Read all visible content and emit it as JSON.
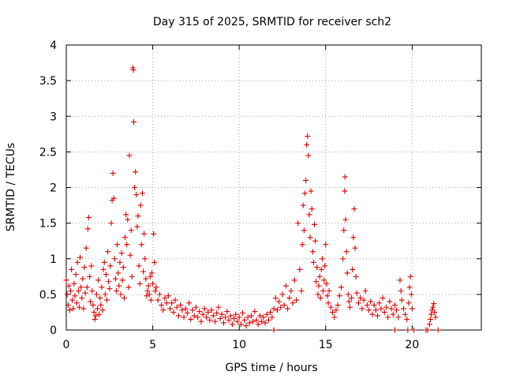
{
  "chart_data": {
    "type": "scatter",
    "title": "Day 315 of 2025, SRMTID for receiver sch2",
    "xlabel": "GPS time / hours",
    "ylabel": "SRMTID / TECUs",
    "xlim": [
      0,
      24
    ],
    "ylim": [
      0,
      4
    ],
    "grid": true,
    "marker": "+",
    "color": "#e00000",
    "x_tick_labels": [
      "0",
      "5",
      "10",
      "15",
      "20"
    ],
    "x_tick_values": [
      0,
      5,
      10,
      15,
      20
    ],
    "y_tick_labels": [
      "0",
      "0.5",
      "1",
      "1.5",
      "2",
      "2.5",
      "3",
      "3.5",
      "4"
    ],
    "y_tick_values": [
      0,
      0.5,
      1,
      1.5,
      2,
      2.5,
      3,
      3.5,
      4
    ],
    "series": [
      {
        "name": "SRMTID",
        "points": [
          [
            0.0,
            0.7
          ],
          [
            0.05,
            0.5
          ],
          [
            0.1,
            0.35
          ],
          [
            0.15,
            0.62
          ],
          [
            0.2,
            0.28
          ],
          [
            0.25,
            0.55
          ],
          [
            0.3,
            0.85
          ],
          [
            0.35,
            0.42
          ],
          [
            0.4,
            0.3
          ],
          [
            0.45,
            0.65
          ],
          [
            0.5,
            0.48
          ],
          [
            0.55,
            0.78
          ],
          [
            0.6,
            0.38
          ],
          [
            0.65,
            0.95
          ],
          [
            0.7,
            0.55
          ],
          [
            0.75,
            0.32
          ],
          [
            0.8,
            1.02
          ],
          [
            0.85,
            0.6
          ],
          [
            0.9,
            0.45
          ],
          [
            0.95,
            0.72
          ],
          [
            1.0,
            0.3
          ],
          [
            1.05,
            0.88
          ],
          [
            1.1,
            0.52
          ],
          [
            1.15,
            1.15
          ],
          [
            1.2,
            0.6
          ],
          [
            1.25,
            1.42
          ],
          [
            1.3,
            1.58
          ],
          [
            1.35,
            0.75
          ],
          [
            1.4,
            0.4
          ],
          [
            1.45,
            0.9
          ],
          [
            1.5,
            0.55
          ],
          [
            1.55,
            0.35
          ],
          [
            1.6,
            0.25
          ],
          [
            1.65,
            0.15
          ],
          [
            1.7,
            0.2
          ],
          [
            1.75,
            0.5
          ],
          [
            1.8,
            0.3
          ],
          [
            1.85,
            0.7
          ],
          [
            1.9,
            0.22
          ],
          [
            1.95,
            0.45
          ],
          [
            2.0,
            0.35
          ],
          [
            2.05,
            0.6
          ],
          [
            2.1,
            0.28
          ],
          [
            2.15,
            0.85
          ],
          [
            2.2,
            0.95
          ],
          [
            2.25,
            0.5
          ],
          [
            2.3,
            0.78
          ],
          [
            2.35,
            0.42
          ],
          [
            2.4,
            1.1
          ],
          [
            2.45,
            0.68
          ],
          [
            2.5,
            0.58
          ],
          [
            2.55,
            0.9
          ],
          [
            2.6,
            1.5
          ],
          [
            2.65,
            1.82
          ],
          [
            2.7,
            2.2
          ],
          [
            2.75,
            1.85
          ],
          [
            2.8,
            1.0
          ],
          [
            2.85,
            0.72
          ],
          [
            2.9,
            0.55
          ],
          [
            2.95,
            1.2
          ],
          [
            3.0,
            0.8
          ],
          [
            3.05,
            0.62
          ],
          [
            3.1,
            0.95
          ],
          [
            3.15,
            0.5
          ],
          [
            3.2,
            1.08
          ],
          [
            3.25,
            0.7
          ],
          [
            3.3,
            0.88
          ],
          [
            3.35,
            0.45
          ],
          [
            3.4,
            1.3
          ],
          [
            3.45,
            1.62
          ],
          [
            3.5,
            1.2
          ],
          [
            3.55,
            1.55
          ],
          [
            3.6,
            0.6
          ],
          [
            3.65,
            2.45
          ],
          [
            3.7,
            1.05
          ],
          [
            3.75,
            1.4
          ],
          [
            3.8,
            0.75
          ],
          [
            3.85,
            3.68
          ],
          [
            3.88,
            3.65
          ],
          [
            3.9,
            2.92
          ],
          [
            3.95,
            2.0
          ],
          [
            4.0,
            2.22
          ],
          [
            4.05,
            1.9
          ],
          [
            4.1,
            1.45
          ],
          [
            4.15,
            1.6
          ],
          [
            4.2,
            0.9
          ],
          [
            4.25,
            0.65
          ],
          [
            4.3,
            1.75
          ],
          [
            4.35,
            1.2
          ],
          [
            4.4,
            1.92
          ],
          [
            4.45,
            0.82
          ],
          [
            4.5,
            1.35
          ],
          [
            4.55,
            1.0
          ],
          [
            4.6,
            0.72
          ],
          [
            4.65,
            0.48
          ],
          [
            4.7,
            0.55
          ],
          [
            4.75,
            0.62
          ],
          [
            4.8,
            0.5
          ],
          [
            4.85,
            0.75
          ],
          [
            4.9,
            0.42
          ],
          [
            4.95,
            0.8
          ],
          [
            5.0,
            0.65
          ],
          [
            5.05,
            1.35
          ],
          [
            5.1,
            0.95
          ],
          [
            5.15,
            0.55
          ],
          [
            5.2,
            0.6
          ],
          [
            5.3,
            0.42
          ],
          [
            5.4,
            0.5
          ],
          [
            5.5,
            0.35
          ],
          [
            5.6,
            0.28
          ],
          [
            5.7,
            0.45
          ],
          [
            5.8,
            0.38
          ],
          [
            5.9,
            0.48
          ],
          [
            6.0,
            0.3
          ],
          [
            6.1,
            0.38
          ],
          [
            6.2,
            0.25
          ],
          [
            6.3,
            0.42
          ],
          [
            6.4,
            0.32
          ],
          [
            6.5,
            0.2
          ],
          [
            6.6,
            0.35
          ],
          [
            6.7,
            0.28
          ],
          [
            6.8,
            0.18
          ],
          [
            6.9,
            0.3
          ],
          [
            7.0,
            0.24
          ],
          [
            7.1,
            0.38
          ],
          [
            7.2,
            0.15
          ],
          [
            7.3,
            0.28
          ],
          [
            7.4,
            0.2
          ],
          [
            7.5,
            0.32
          ],
          [
            7.6,
            0.18
          ],
          [
            7.7,
            0.26
          ],
          [
            7.8,
            0.12
          ],
          [
            7.9,
            0.22
          ],
          [
            8.0,
            0.3
          ],
          [
            8.1,
            0.18
          ],
          [
            8.2,
            0.25
          ],
          [
            8.3,
            0.14
          ],
          [
            8.4,
            0.28
          ],
          [
            8.5,
            0.2
          ],
          [
            8.6,
            0.12
          ],
          [
            8.7,
            0.24
          ],
          [
            8.8,
            0.32
          ],
          [
            8.9,
            0.16
          ],
          [
            9.0,
            0.22
          ],
          [
            9.1,
            0.1
          ],
          [
            9.2,
            0.18
          ],
          [
            9.3,
            0.26
          ],
          [
            9.4,
            0.14
          ],
          [
            9.5,
            0.2
          ],
          [
            9.6,
            0.08
          ],
          [
            9.7,
            0.16
          ],
          [
            9.8,
            0.22
          ],
          [
            9.9,
            0.12
          ],
          [
            10.0,
            0.18
          ],
          [
            10.1,
            0.08
          ],
          [
            10.2,
            0.24
          ],
          [
            10.3,
            0.14
          ],
          [
            10.4,
            0.06
          ],
          [
            10.5,
            0.18
          ],
          [
            10.6,
            0.1
          ],
          [
            10.7,
            0.2
          ],
          [
            10.8,
            0.12
          ],
          [
            10.9,
            0.26
          ],
          [
            11.0,
            0.14
          ],
          [
            11.1,
            0.08
          ],
          [
            11.2,
            0.2
          ],
          [
            11.3,
            0.12
          ],
          [
            11.4,
            0.18
          ],
          [
            11.5,
            0.1
          ],
          [
            11.6,
            0.22
          ],
          [
            11.7,
            0.14
          ],
          [
            11.8,
            0.25
          ],
          [
            11.9,
            0.18
          ],
          [
            12.0,
            0.0
          ],
          [
            12.0,
            0.3
          ],
          [
            12.1,
            0.45
          ],
          [
            12.2,
            0.28
          ],
          [
            12.3,
            0.4
          ],
          [
            12.4,
            0.32
          ],
          [
            12.5,
            0.5
          ],
          [
            12.6,
            0.35
          ],
          [
            12.7,
            0.62
          ],
          [
            12.8,
            0.3
          ],
          [
            12.9,
            0.45
          ],
          [
            13.0,
            0.55
          ],
          [
            13.1,
            0.38
          ],
          [
            13.2,
            0.7
          ],
          [
            13.3,
            0.42
          ],
          [
            13.4,
            1.5
          ],
          [
            13.5,
            0.85
          ],
          [
            13.6,
            0.55
          ],
          [
            13.65,
            1.2
          ],
          [
            13.7,
            1.75
          ],
          [
            13.75,
            1.4
          ],
          [
            13.8,
            1.92
          ],
          [
            13.85,
            2.1
          ],
          [
            13.9,
            2.6
          ],
          [
            13.95,
            2.72
          ],
          [
            14.0,
            2.45
          ],
          [
            14.05,
            1.62
          ],
          [
            14.1,
            1.3
          ],
          [
            14.15,
            1.95
          ],
          [
            14.2,
            1.7
          ],
          [
            14.25,
            1.1
          ],
          [
            14.3,
            0.95
          ],
          [
            14.35,
            1.48
          ],
          [
            14.4,
            1.25
          ],
          [
            14.45,
            0.68
          ],
          [
            14.5,
            0.88
          ],
          [
            14.55,
            0.5
          ],
          [
            14.6,
            0.62
          ],
          [
            14.65,
            0.75
          ],
          [
            14.7,
            0.45
          ],
          [
            14.75,
            0.85
          ],
          [
            14.8,
            1.0
          ],
          [
            14.85,
            0.55
          ],
          [
            14.9,
            0.7
          ],
          [
            14.95,
            0.9
          ],
          [
            15.0,
            1.2
          ],
          [
            15.05,
            0.65
          ],
          [
            15.1,
            0.48
          ],
          [
            15.15,
            0.38
          ],
          [
            15.2,
            0.55
          ],
          [
            15.3,
            0.32
          ],
          [
            15.4,
            0.25
          ],
          [
            15.5,
            0.18
          ],
          [
            15.6,
            0.28
          ],
          [
            15.7,
            0.35
          ],
          [
            15.8,
            0.48
          ],
          [
            15.9,
            0.6
          ],
          [
            16.0,
            1.0
          ],
          [
            16.05,
            1.4
          ],
          [
            16.1,
            1.95
          ],
          [
            16.12,
            2.15
          ],
          [
            16.15,
            1.55
          ],
          [
            16.2,
            1.1
          ],
          [
            16.25,
            0.8
          ],
          [
            16.3,
            0.5
          ],
          [
            16.35,
            0.4
          ],
          [
            16.4,
            0.32
          ],
          [
            16.5,
            0.45
          ],
          [
            16.55,
            0.85
          ],
          [
            16.6,
            1.3
          ],
          [
            16.65,
            1.7
          ],
          [
            16.7,
            1.15
          ],
          [
            16.75,
            0.75
          ],
          [
            16.8,
            0.52
          ],
          [
            16.9,
            0.38
          ],
          [
            17.0,
            0.45
          ],
          [
            17.1,
            0.3
          ],
          [
            17.2,
            0.42
          ],
          [
            17.3,
            0.55
          ],
          [
            17.4,
            0.35
          ],
          [
            17.5,
            0.28
          ],
          [
            17.6,
            0.4
          ],
          [
            17.7,
            0.22
          ],
          [
            17.8,
            0.35
          ],
          [
            17.9,
            0.28
          ],
          [
            18.0,
            0.2
          ],
          [
            18.1,
            0.38
          ],
          [
            18.2,
            0.3
          ],
          [
            18.3,
            0.45
          ],
          [
            18.4,
            0.25
          ],
          [
            18.5,
            0.32
          ],
          [
            18.6,
            0.18
          ],
          [
            18.7,
            0.4
          ],
          [
            18.8,
            0.3
          ],
          [
            18.9,
            0.22
          ],
          [
            19.0,
            0.0
          ],
          [
            19.0,
            0.35
          ],
          [
            19.1,
            0.28
          ],
          [
            19.2,
            0.18
          ],
          [
            19.3,
            0.7
          ],
          [
            19.35,
            0.55
          ],
          [
            19.4,
            0.42
          ],
          [
            19.5,
            0.3
          ],
          [
            19.6,
            0.22
          ],
          [
            19.7,
            0.15
          ],
          [
            19.75,
            0.0
          ],
          [
            19.8,
            0.38
          ],
          [
            19.85,
            0.6
          ],
          [
            19.9,
            0.75
          ],
          [
            19.95,
            0.5
          ],
          [
            20.0,
            0.3
          ],
          [
            20.1,
            0.0
          ],
          [
            20.8,
            0.0
          ],
          [
            20.9,
            0.0
          ],
          [
            21.0,
            0.08
          ],
          [
            21.05,
            0.15
          ],
          [
            21.1,
            0.22
          ],
          [
            21.15,
            0.28
          ],
          [
            21.2,
            0.32
          ],
          [
            21.25,
            0.37
          ],
          [
            21.3,
            0.25
          ],
          [
            21.35,
            0.18
          ],
          [
            21.5,
            0.0
          ]
        ]
      }
    ]
  }
}
